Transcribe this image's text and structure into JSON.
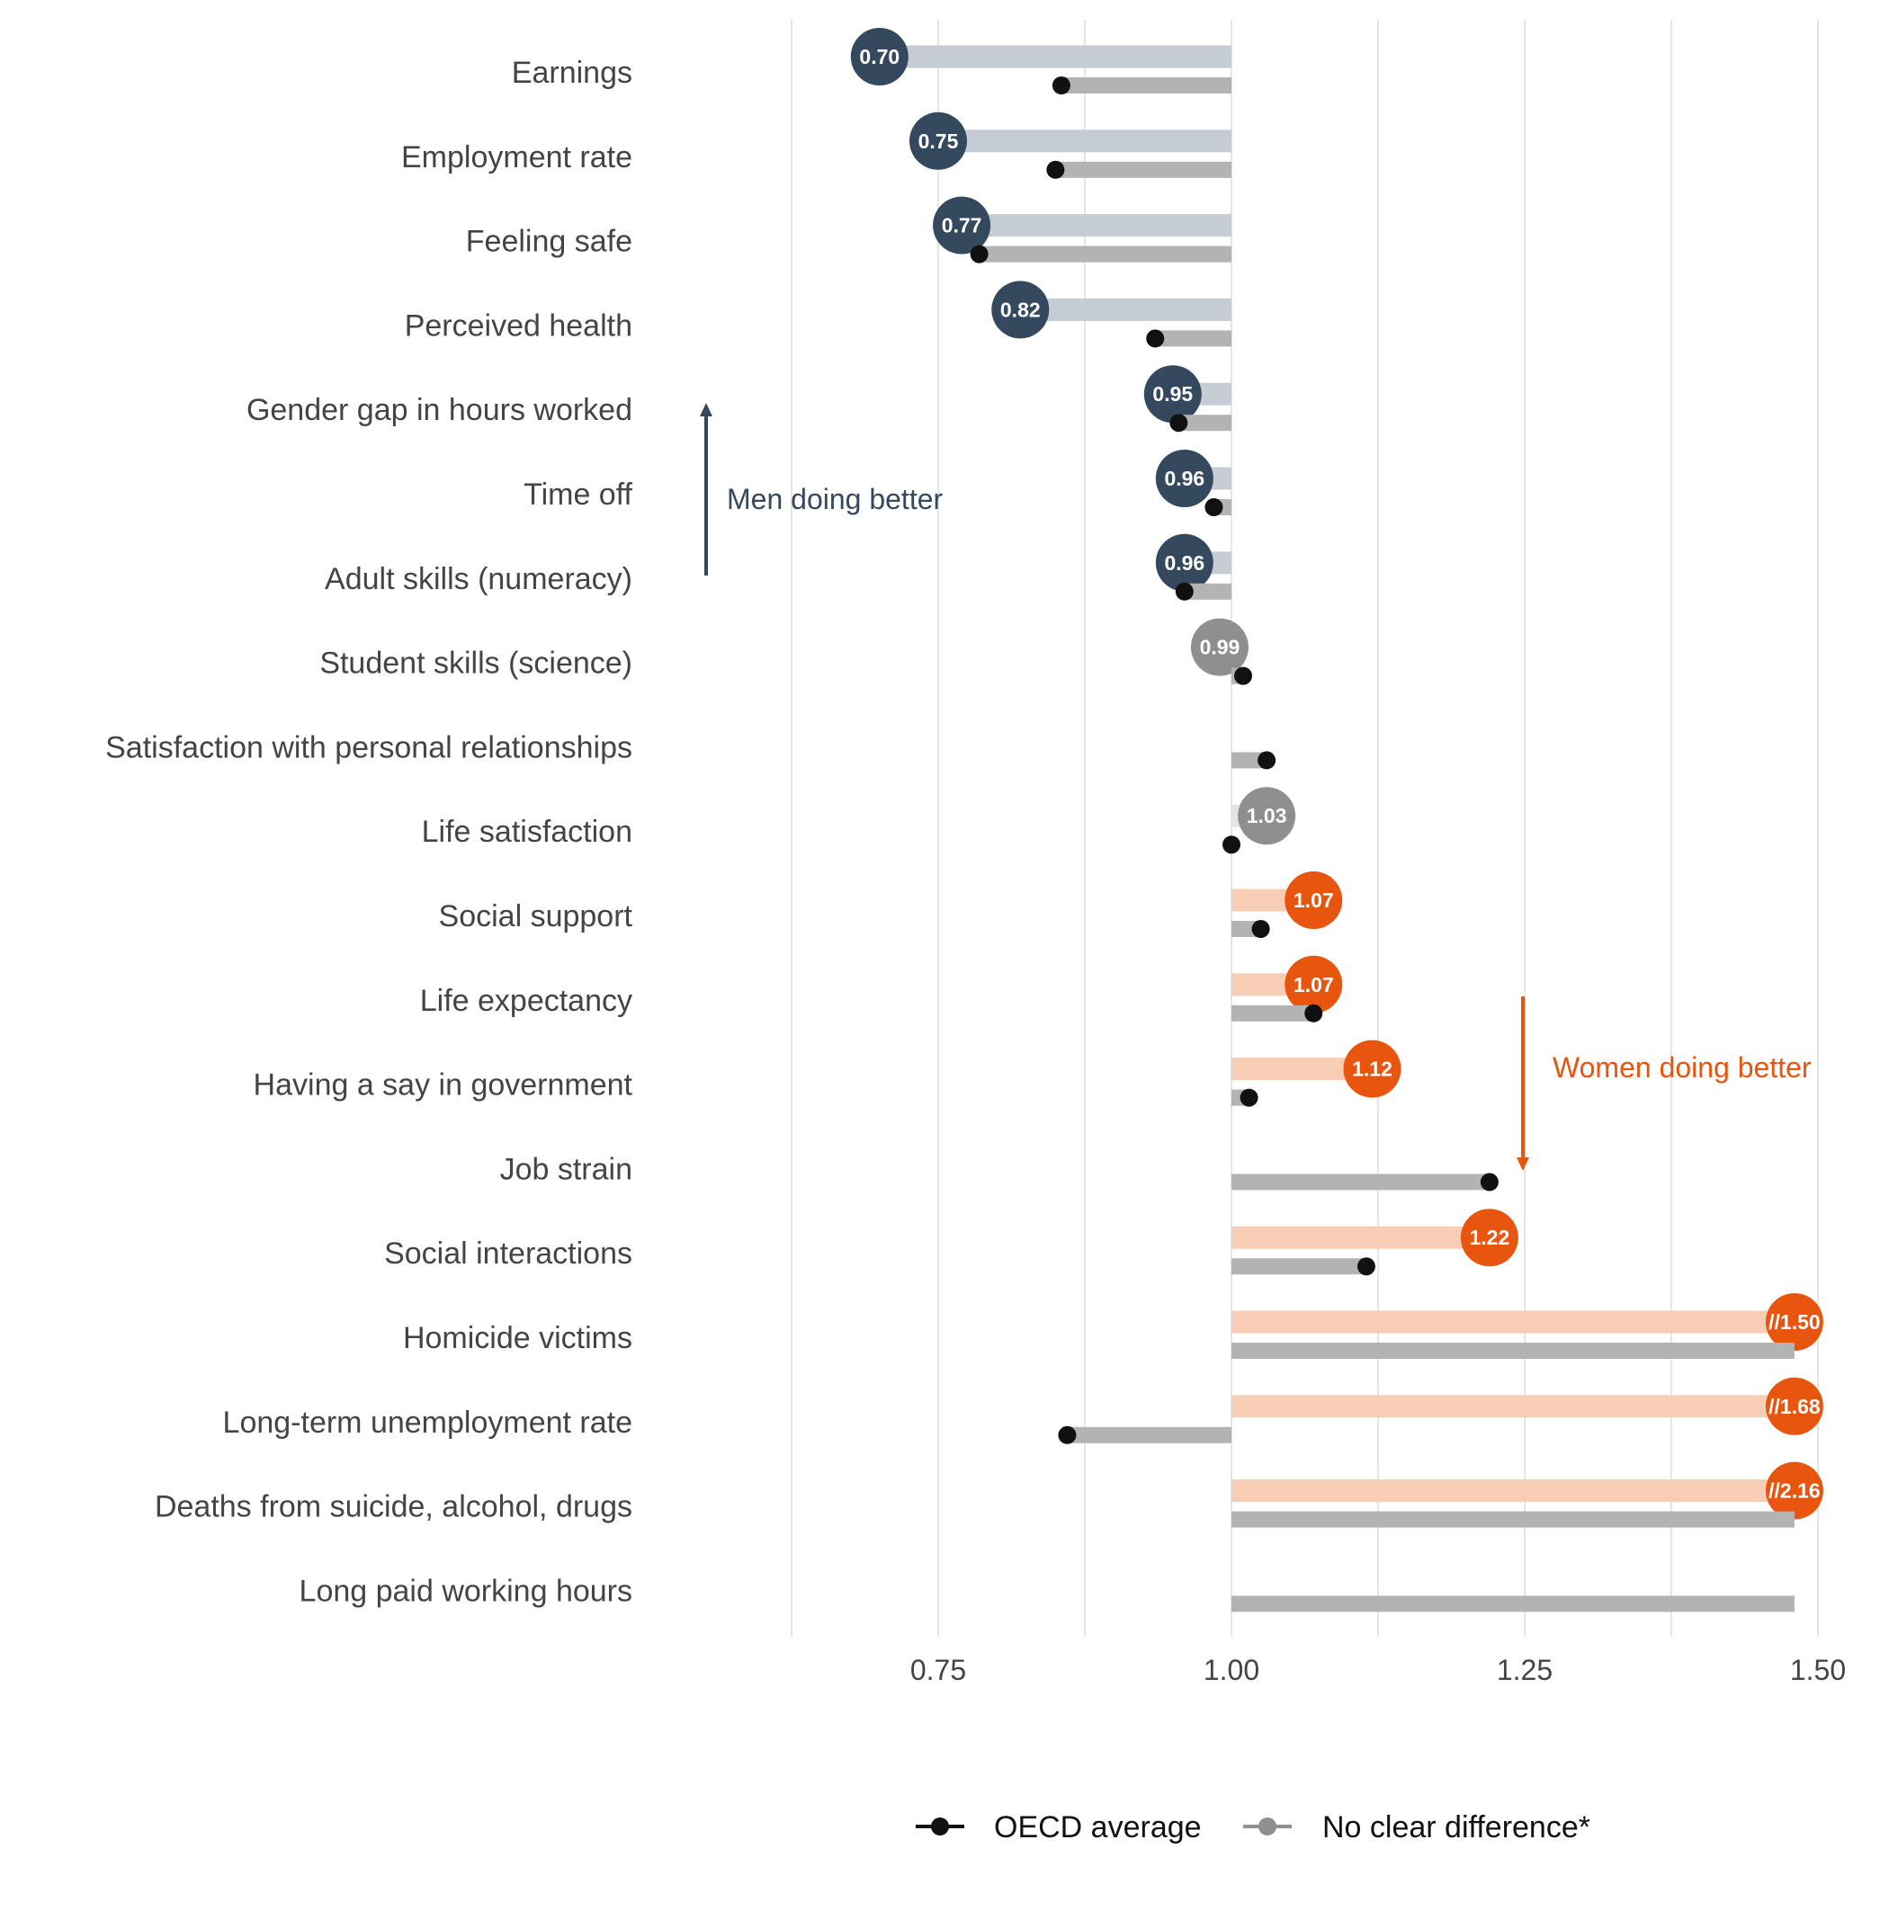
{
  "chart_data": {
    "type": "bar",
    "xlim": [
      0.6,
      1.52
    ],
    "xticks": [
      "0.75",
      "1.00",
      "1.25",
      "1.50"
    ],
    "xtick_values": [
      0.75,
      1.0,
      1.25,
      1.5
    ],
    "minor_grid": [
      0.625,
      0.875,
      1.125,
      1.375
    ],
    "grid": true,
    "baseline": 1.0,
    "colors": {
      "men": "#34495e",
      "men_bar": "#c6ccd4",
      "women": "#e8550e",
      "women_bar": "#f8cdb5",
      "neutral": "#8f8f8f",
      "neutral_bar": "#e4e4e4",
      "oecd_bar": "#b3b3b3",
      "oecd_point": "#111111",
      "grid": "#e5e5e5"
    },
    "categories": [
      {
        "label": "Earnings",
        "value": 0.7,
        "display": "0.70",
        "group": "men",
        "oecd": 0.855
      },
      {
        "label": "Employment rate",
        "value": 0.75,
        "display": "0.75",
        "group": "men",
        "oecd": 0.85
      },
      {
        "label": "Feeling safe",
        "value": 0.77,
        "display": "0.77",
        "group": "men",
        "oecd": 0.785
      },
      {
        "label": "Perceived health",
        "value": 0.82,
        "display": "0.82",
        "group": "men",
        "oecd": 0.935
      },
      {
        "label": "Gender gap in hours worked",
        "value": 0.95,
        "display": "0.95",
        "group": "men",
        "oecd": 0.955
      },
      {
        "label": "Time off",
        "value": 0.96,
        "display": "0.96",
        "group": "men",
        "oecd": 0.985
      },
      {
        "label": "Adult skills (numeracy)",
        "value": 0.96,
        "display": "0.96",
        "group": "men",
        "oecd": 0.96
      },
      {
        "label": "Student skills (science)",
        "value": 0.99,
        "display": "0.99",
        "group": "neutral",
        "oecd": 1.01
      },
      {
        "label": "Satisfaction with personal relationships",
        "value": null,
        "display": "",
        "group": "none",
        "oecd": 1.03
      },
      {
        "label": "Life satisfaction",
        "value": 1.03,
        "display": "1.03",
        "group": "neutral",
        "oecd": 1.0
      },
      {
        "label": "Social support",
        "value": 1.07,
        "display": "1.07",
        "group": "women",
        "oecd": 1.025
      },
      {
        "label": "Life expectancy ",
        "value": 1.07,
        "display": "1.07",
        "group": "women",
        "oecd": 1.07
      },
      {
        "label": "Having a say in government",
        "value": 1.12,
        "display": "1.12",
        "group": "women",
        "oecd": 1.015
      },
      {
        "label": "Job strain",
        "value": null,
        "display": "",
        "group": "none",
        "oecd": 1.22
      },
      {
        "label": "Social interactions",
        "value": 1.22,
        "display": "1.22",
        "group": "women",
        "oecd": 1.115
      },
      {
        "label": "Homicide victims",
        "value": 1.5,
        "display": "//1.50",
        "group": "women",
        "oecd": 1.48,
        "truncated": true,
        "oecd_truncated": true
      },
      {
        "label": "Long-term unemployment rate",
        "value": 1.68,
        "display": "//1.68",
        "group": "women",
        "oecd": 0.86,
        "truncated": true
      },
      {
        "label": "Deaths from suicide, alcohol, drugs",
        "value": 2.16,
        "display": "//2.16",
        "group": "women",
        "oecd": 1.48,
        "truncated": true,
        "oecd_truncated": true
      },
      {
        "label": "Long paid working hours",
        "value": null,
        "display": "",
        "group": "none",
        "oecd": 1.48,
        "oecd_truncated": true
      }
    ],
    "annotations": {
      "men": "Men doing better",
      "women": "Women doing better"
    },
    "legend": {
      "position": "bottom",
      "items": [
        {
          "label": "OECD average",
          "color": "#111111"
        },
        {
          "label": "No clear difference*",
          "color": "#8f8f8f"
        }
      ]
    }
  }
}
